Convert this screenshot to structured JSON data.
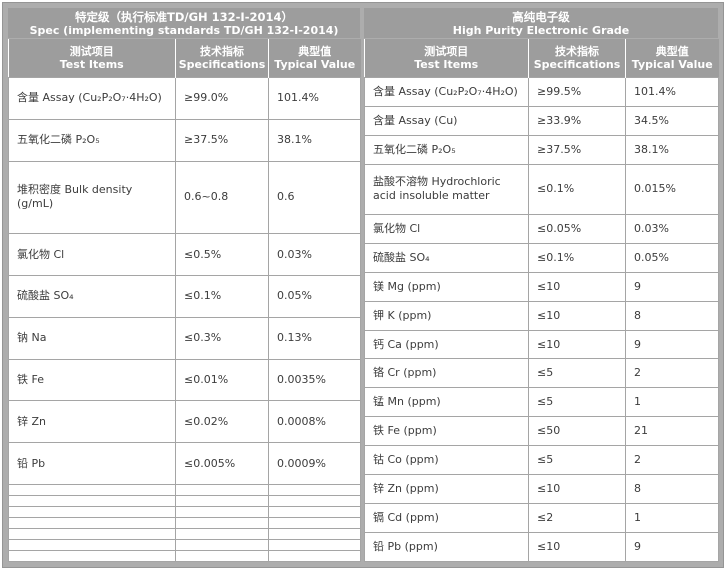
{
  "theme": {
    "frame_color": "#adadad",
    "header_bg": "#9d9d9d",
    "header_text_color": "#ffffff",
    "body_text_color": "#3c3c3c",
    "cell_border_color": "#a5a5a5"
  },
  "left_table": {
    "title_cn": "特定级（执行标准TD/GH 132-I-2014）",
    "title_en": "Spec (implementing standards TD/GH 132-I-2014)",
    "columns": [
      {
        "cn": "测试项目",
        "en": "Test Items"
      },
      {
        "cn": "技术指标",
        "en": "Specifications"
      },
      {
        "cn": "典型值",
        "en": "Typical Value"
      }
    ],
    "rows": [
      {
        "item": "含量  Assay (Cu₂P₂O₇·4H₂O)",
        "spec": "≥99.0%",
        "typical": "101.4%"
      },
      {
        "item": "五氧化二磷  P₂O₅",
        "spec": "≥37.5%",
        "typical": "38.1%"
      },
      {
        "item": "堆积密度  Bulk density (g/mL)",
        "spec": "0.6~0.8",
        "typical": "0.6"
      },
      {
        "item": "氯化物  Cl",
        "spec": "≤0.5%",
        "typical": "0.03%"
      },
      {
        "item": "硫酸盐  SO₄",
        "spec": "≤0.1%",
        "typical": "0.05%"
      },
      {
        "item": "钠  Na",
        "spec": "≤0.3%",
        "typical": "0.13%"
      },
      {
        "item": "铁  Fe",
        "spec": "≤0.01%",
        "typical": "0.0035%"
      },
      {
        "item": "锌  Zn",
        "spec": "≤0.02%",
        "typical": "0.0008%"
      },
      {
        "item": "铅  Pb",
        "spec": "≤0.005%",
        "typical": "0.0009%"
      },
      {
        "item": "",
        "spec": "",
        "typical": ""
      },
      {
        "item": "",
        "spec": "",
        "typical": ""
      },
      {
        "item": "",
        "spec": "",
        "typical": ""
      },
      {
        "item": "",
        "spec": "",
        "typical": ""
      },
      {
        "item": "",
        "spec": "",
        "typical": ""
      },
      {
        "item": "",
        "spec": "",
        "typical": ""
      },
      {
        "item": "",
        "spec": "",
        "typical": ""
      }
    ]
  },
  "right_table": {
    "title_cn": "高纯电子级",
    "title_en": "High Purity Electronic Grade",
    "columns": [
      {
        "cn": "测试项目",
        "en": "Test Items"
      },
      {
        "cn": "技术指标",
        "en": "Specifications"
      },
      {
        "cn": "典型值",
        "en": "Typical Value"
      }
    ],
    "rows": [
      {
        "item": "含量  Assay (Cu₂P₂O₇·4H₂O)",
        "spec": "≥99.5%",
        "typical": "101.4%"
      },
      {
        "item": "含量  Assay (Cu)",
        "spec": "≥33.9%",
        "typical": "34.5%"
      },
      {
        "item": "五氧化二磷  P₂O₅",
        "spec": "≥37.5%",
        "typical": "38.1%"
      },
      {
        "item": "盐酸不溶物  Hydrochloric acid insoluble matter",
        "spec": "≤0.1%",
        "typical": "0.015%"
      },
      {
        "item": "氯化物  Cl",
        "spec": "≤0.05%",
        "typical": "0.03%"
      },
      {
        "item": "硫酸盐  SO₄",
        "spec": "≤0.1%",
        "typical": "0.05%"
      },
      {
        "item": "镁  Mg (ppm)",
        "spec": "≤10",
        "typical": "9"
      },
      {
        "item": "钾  K (ppm)",
        "spec": "≤10",
        "typical": "8"
      },
      {
        "item": "钙  Ca (ppm)",
        "spec": "≤10",
        "typical": "9"
      },
      {
        "item": "铬  Cr (ppm)",
        "spec": "≤5",
        "typical": "2"
      },
      {
        "item": "锰  Mn (ppm)",
        "spec": "≤5",
        "typical": "1"
      },
      {
        "item": "铁  Fe (ppm)",
        "spec": "≤50",
        "typical": "21"
      },
      {
        "item": "钴  Co (ppm)",
        "spec": "≤5",
        "typical": "2"
      },
      {
        "item": "锌  Zn (ppm)",
        "spec": "≤10",
        "typical": "8"
      },
      {
        "item": "镉  Cd (ppm)",
        "spec": "≤2",
        "typical": "1"
      },
      {
        "item": "铅  Pb (ppm)",
        "spec": "≤10",
        "typical": "9"
      }
    ]
  }
}
